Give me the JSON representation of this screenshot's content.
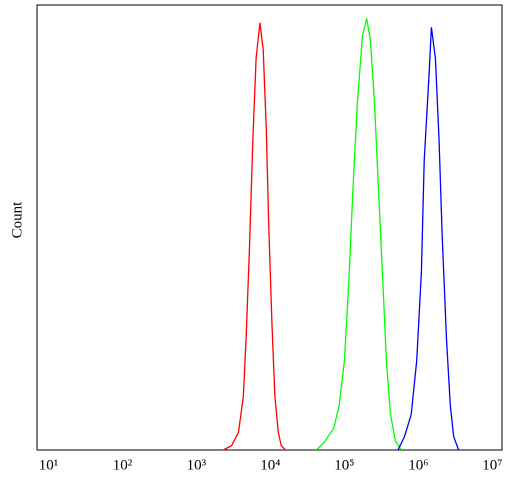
{
  "chart_data": {
    "type": "line",
    "y_label": "Count",
    "xscale": "log",
    "xlim": [
      7,
      13500000
    ],
    "ylim": [
      0,
      100
    ],
    "xticks": [
      {
        "value": 10,
        "label": "10¹"
      },
      {
        "value": 100,
        "label": "10²"
      },
      {
        "value": 1000,
        "label": "10³"
      },
      {
        "value": 10000,
        "label": "10⁴"
      },
      {
        "value": 100000,
        "label": "10⁵"
      },
      {
        "value": 1000000,
        "label": "10⁶"
      },
      {
        "value": 10000000,
        "label": "10⁷"
      }
    ],
    "series": [
      {
        "color": "#ff0000",
        "x": [
          2300,
          3000,
          3700,
          4300,
          4700,
          5200,
          5800,
          6400,
          7200,
          8000,
          8800,
          9500,
          10500,
          11500,
          12800,
          14000,
          16000
        ],
        "values": [
          0,
          1,
          4,
          12,
          25,
          45,
          70,
          88,
          96,
          90,
          72,
          50,
          28,
          12,
          4,
          1,
          0
        ]
      },
      {
        "color": "#00ff00",
        "x": [
          42000,
          55000,
          72000,
          85000,
          100000,
          115000,
          130000,
          150000,
          175000,
          200000,
          225000,
          255000,
          290000,
          330000,
          370000,
          420000,
          490000,
          590000
        ],
        "values": [
          0,
          2,
          5,
          10,
          20,
          38,
          58,
          78,
          93,
          97,
          92,
          78,
          58,
          38,
          20,
          8,
          2,
          0
        ]
      },
      {
        "color": "#0000ff",
        "x": [
          530000,
          650000,
          800000,
          950000,
          1100000,
          1200000,
          1400000,
          1500000,
          1700000,
          1900000,
          2100000,
          2400000,
          2700000,
          3000000,
          3500000
        ],
        "values": [
          0,
          3,
          8,
          20,
          40,
          65,
          85,
          95,
          88,
          70,
          48,
          25,
          10,
          3,
          0
        ]
      }
    ]
  }
}
